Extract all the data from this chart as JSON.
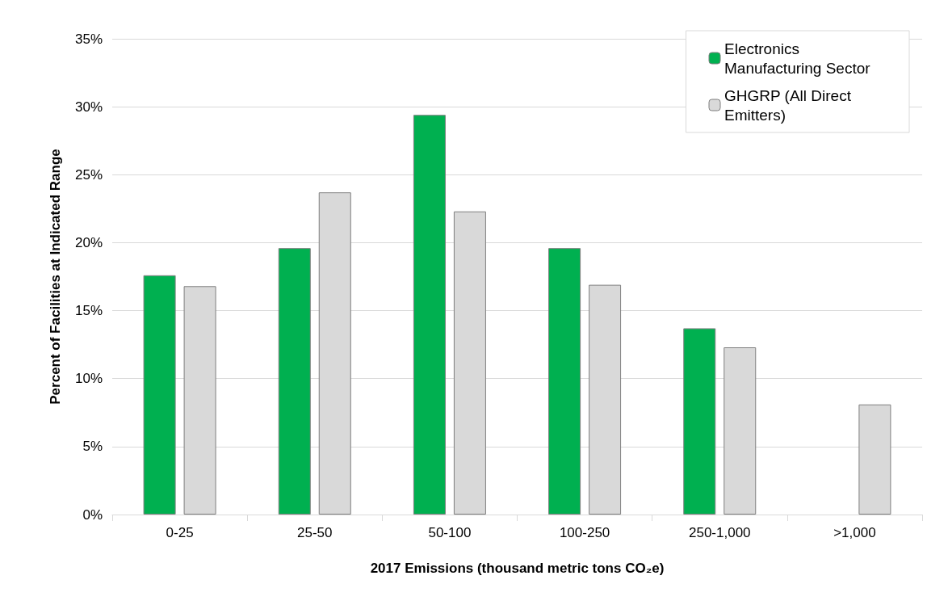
{
  "chart_data": {
    "type": "bar",
    "xlabel": "2017 Emissions (thousand metric tons CO₂e)",
    "ylabel": "Percent of Facilities at Indicated Range",
    "categories": [
      "0-25",
      "25-50",
      "50-100",
      "100-250",
      "250-1,000",
      ">1,000"
    ],
    "series": [
      {
        "name": "Electronics Manufacturing Sector",
        "color": "#00b050",
        "values": [
          17.6,
          19.6,
          29.4,
          19.6,
          13.7,
          null
        ]
      },
      {
        "name": "GHGRP (All Direct Emitters)",
        "color": "#d9d9d9",
        "values": [
          16.8,
          23.7,
          22.3,
          16.9,
          12.3,
          8.1
        ]
      }
    ],
    "ylim": [
      0,
      35
    ],
    "yticks": [
      {
        "value": 0,
        "label": "0%"
      },
      {
        "value": 5,
        "label": "5%"
      },
      {
        "value": 10,
        "label": "10%"
      },
      {
        "value": 15,
        "label": "15%"
      },
      {
        "value": 20,
        "label": "20%"
      },
      {
        "value": 25,
        "label": "25%"
      },
      {
        "value": 30,
        "label": "30%"
      },
      {
        "value": 35,
        "label": "35%"
      }
    ],
    "grid": "y",
    "legend": "top right"
  }
}
